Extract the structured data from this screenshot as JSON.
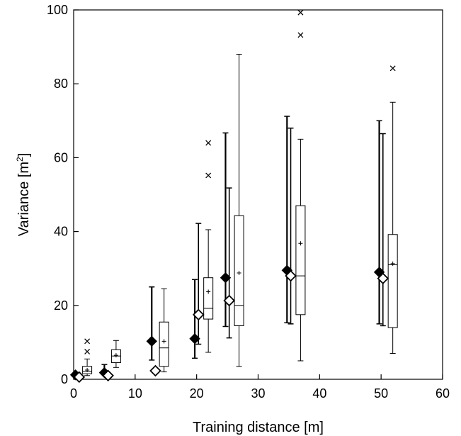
{
  "chart_data": {
    "type": "box",
    "xlabel": "Training distance [m]",
    "ylabel_main": "Variance [m",
    "ylabel_sup": "2",
    "ylabel_close": "]",
    "xlim": [
      0,
      60
    ],
    "ylim": [
      0,
      100
    ],
    "xticks": [
      0,
      10,
      20,
      30,
      40,
      50,
      60
    ],
    "yticks": [
      0,
      20,
      40,
      60,
      80,
      100
    ],
    "grid": false,
    "legend": "none",
    "marker_series": [
      {
        "marker": "filled-diamond",
        "points": [
          {
            "x": 0.3,
            "y": 1.2,
            "whisker_low": null,
            "whisker_high": null
          },
          {
            "x": 5.0,
            "y": 1.8,
            "whisker_low": null,
            "whisker_high": 4.0
          },
          {
            "x": 12.7,
            "y": 10.3,
            "whisker_low": 5.2,
            "whisker_high": 25.0
          },
          {
            "x": 19.7,
            "y": 11.0,
            "whisker_low": 5.7,
            "whisker_high": 27.0
          },
          {
            "x": 24.7,
            "y": 27.5,
            "whisker_low": 14.3,
            "whisker_high": 66.7
          },
          {
            "x": 34.7,
            "y": 29.5,
            "whisker_low": 15.3,
            "whisker_high": 71.2
          },
          {
            "x": 49.7,
            "y": 29.0,
            "whisker_low": 15.0,
            "whisker_high": 70.0
          }
        ]
      },
      {
        "marker": "open-diamond",
        "points": [
          {
            "x": 0.9,
            "y": 0.6,
            "whisker_low": null,
            "whisker_high": null
          },
          {
            "x": 5.6,
            "y": 1.0,
            "whisker_low": null,
            "whisker_high": null
          },
          {
            "x": 13.3,
            "y": 2.3,
            "whisker_low": null,
            "whisker_high": null
          },
          {
            "x": 20.3,
            "y": 17.5,
            "whisker_low": 9.5,
            "whisker_high": 42.2
          },
          {
            "x": 25.3,
            "y": 21.3,
            "whisker_low": 11.2,
            "whisker_high": 51.8
          },
          {
            "x": 35.3,
            "y": 28.0,
            "whisker_low": 15.0,
            "whisker_high": 68.0
          },
          {
            "x": 50.3,
            "y": 27.3,
            "whisker_low": 14.5,
            "whisker_high": 66.5
          }
        ]
      }
    ],
    "boxes": [
      {
        "x": 2.2,
        "min": 1.0,
        "q1": 1.5,
        "median": 2.2,
        "q3": 3.5,
        "max": 5.5,
        "mean": 2.5,
        "outliers": [
          7.5,
          10.3
        ]
      },
      {
        "x": 6.9,
        "min": 3.2,
        "q1": 4.5,
        "median": 6.3,
        "q3": 8.0,
        "max": 10.5,
        "mean": 6.5,
        "outliers": []
      },
      {
        "x": 14.7,
        "min": 2.0,
        "q1": 3.5,
        "median": 8.5,
        "q3": 15.5,
        "max": 24.5,
        "mean": 10.3,
        "outliers": []
      },
      {
        "x": 21.9,
        "min": 7.3,
        "q1": 16.3,
        "median": 19.2,
        "q3": 27.5,
        "max": 40.5,
        "mean": 23.7,
        "outliers": [
          55.2,
          64.0
        ]
      },
      {
        "x": 26.9,
        "min": 3.5,
        "q1": 14.5,
        "median": 20.0,
        "q3": 44.3,
        "max": 88.0,
        "mean": 28.8,
        "outliers": []
      },
      {
        "x": 36.9,
        "min": 5.0,
        "q1": 17.5,
        "median": 28.0,
        "q3": 47.0,
        "max": 65.0,
        "mean": 36.8,
        "outliers": [
          93.2,
          99.3
        ]
      },
      {
        "x": 51.9,
        "min": 7.0,
        "q1": 14.0,
        "median": 31.0,
        "q3": 39.2,
        "max": 75.0,
        "mean": 31.3,
        "outliers": [
          84.2
        ]
      }
    ]
  }
}
